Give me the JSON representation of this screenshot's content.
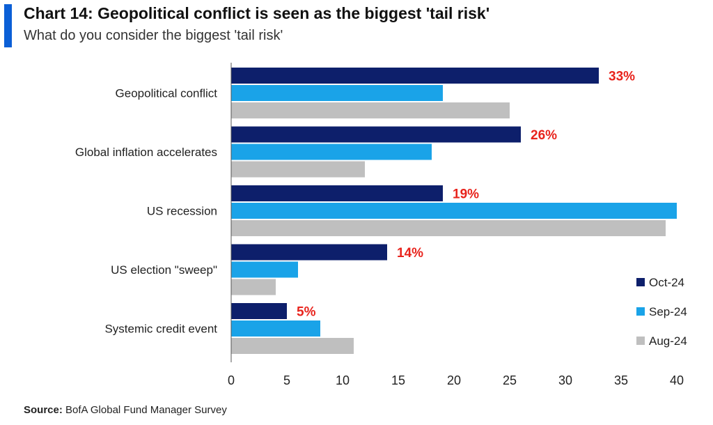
{
  "header": {
    "title": "Chart 14: Geopolitical conflict is seen as the biggest 'tail risk'",
    "subtitle": "What do you consider the biggest 'tail risk'"
  },
  "footer": {
    "source_label": "Source:",
    "source_text": "BofA Global Fund Manager Survey"
  },
  "colors": {
    "accent": "#0b5fd6",
    "Oct-24": "#0d1f6b",
    "Sep-24": "#1aa3e8",
    "Aug-24": "#bfbfbf",
    "data_label": "#e8231c"
  },
  "chart_data": {
    "type": "bar",
    "orientation": "horizontal",
    "categories": [
      "Geopolitical conflict",
      "Global inflation accelerates",
      "US recession",
      "US election \"sweep\"",
      "Systemic credit event"
    ],
    "series": [
      {
        "name": "Oct-24",
        "values": [
          33,
          26,
          19,
          14,
          5
        ]
      },
      {
        "name": "Sep-24",
        "values": [
          19,
          18,
          40,
          6,
          8
        ]
      },
      {
        "name": "Aug-24",
        "values": [
          25,
          12,
          39,
          4,
          11
        ]
      }
    ],
    "data_labels": [
      "33%",
      "26%",
      "19%",
      "14%",
      "5%"
    ],
    "xlim": [
      0,
      40
    ],
    "xticks": [
      0,
      5,
      10,
      15,
      20,
      25,
      30,
      35,
      40
    ],
    "grid": false,
    "legend_position": "bottom-right"
  }
}
